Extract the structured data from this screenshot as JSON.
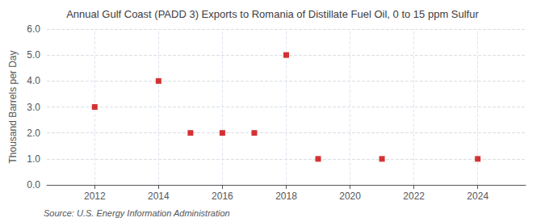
{
  "chart_data": {
    "type": "scatter",
    "title": "Annual Gulf Coast (PADD 3) Exports to Romania of Distillate Fuel Oil, 0 to 15 ppm Sulfur",
    "ylabel": "Thousand Barrels per Day",
    "source": "Source: U.S. Energy Information Administration",
    "x": [
      2012,
      2014,
      2015,
      2016,
      2017,
      2018,
      2019,
      2021,
      2024
    ],
    "values": [
      3.0,
      4.0,
      2.0,
      2.0,
      2.0,
      5.0,
      1.0,
      1.0,
      1.0
    ],
    "color": "#cc0000",
    "marker": "square",
    "xlim": [
      2010.5,
      2025.5
    ],
    "ylim": [
      0.0,
      6.0
    ],
    "xticks": [
      2012,
      2014,
      2016,
      2018,
      2020,
      2022,
      2024
    ],
    "yticks": [
      {
        "value": 0.0,
        "label": "0.0"
      },
      {
        "value": 1.0,
        "label": "1.0"
      },
      {
        "value": 2.0,
        "label": "2.0"
      },
      {
        "value": 3.0,
        "label": "3.0"
      },
      {
        "value": 4.0,
        "label": "4.0"
      },
      {
        "value": 5.0,
        "label": "5.0"
      },
      {
        "value": 6.0,
        "label": "6.0"
      }
    ],
    "grid": true
  }
}
